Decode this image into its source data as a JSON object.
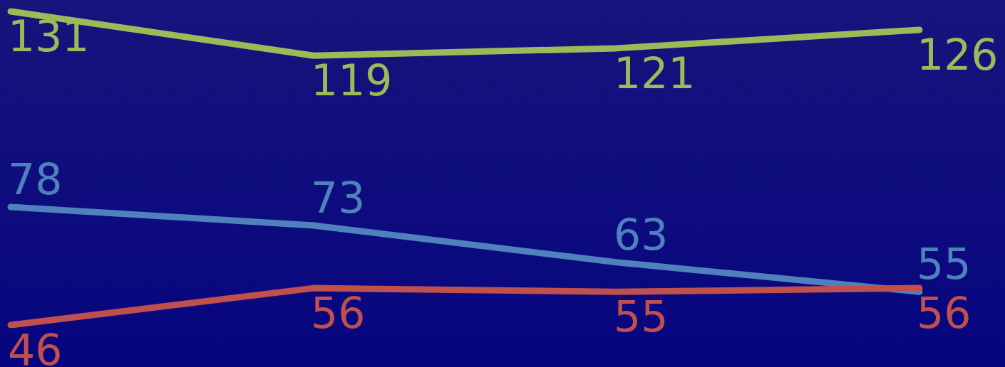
{
  "chart_data": {
    "type": "line",
    "categories": [
      null,
      null,
      null,
      null
    ],
    "series": [
      {
        "color": "#9bbb59",
        "values": [
          131,
          119,
          121,
          126
        ]
      },
      {
        "color": "#4f81bd",
        "values": [
          78,
          73,
          63,
          55
        ]
      },
      {
        "color": "#c0504d",
        "values": [
          46,
          56,
          55,
          56
        ]
      }
    ],
    "data_labels": true,
    "grid": false,
    "marker": "none",
    "line_style": "solid"
  }
}
